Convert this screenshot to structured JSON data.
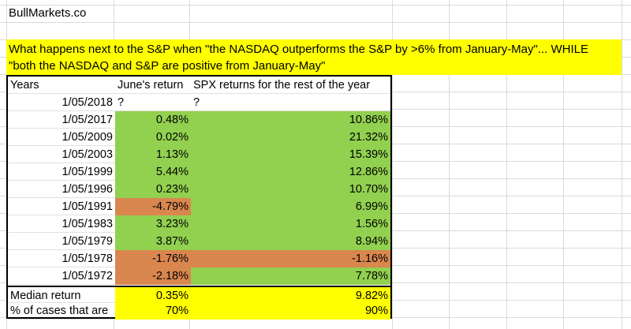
{
  "colors": {
    "positive": "#92D050",
    "negative": "#D9864F",
    "highlight": "#FFFF00"
  },
  "site": "BullMarkets.co",
  "title_line1": "What happens next to the S&P when \"the NASDAQ outperforms the S&P by >6% from January-May\"... WHILE",
  "title_line2": "\"both the NASDAQ and S&P are positive from January-May\"",
  "headers": [
    "Years",
    "June's return",
    "SPX returns for the rest of the year"
  ],
  "rows": [
    {
      "date": "1/05/2018",
      "june": "?",
      "rest": "?",
      "june_sign": "none",
      "rest_sign": "none"
    },
    {
      "date": "1/05/2017",
      "june": "0.48%",
      "rest": "10.86%",
      "june_sign": "pos",
      "rest_sign": "pos"
    },
    {
      "date": "1/05/2009",
      "june": "0.02%",
      "rest": "21.32%",
      "june_sign": "pos",
      "rest_sign": "pos"
    },
    {
      "date": "1/05/2003",
      "june": "1.13%",
      "rest": "15.39%",
      "june_sign": "pos",
      "rest_sign": "pos"
    },
    {
      "date": "1/05/1999",
      "june": "5.44%",
      "rest": "12.86%",
      "june_sign": "pos",
      "rest_sign": "pos"
    },
    {
      "date": "1/05/1996",
      "june": "0.23%",
      "rest": "10.70%",
      "june_sign": "pos",
      "rest_sign": "pos"
    },
    {
      "date": "1/05/1991",
      "june": "-4.79%",
      "rest": "6.99%",
      "june_sign": "neg",
      "rest_sign": "pos"
    },
    {
      "date": "1/05/1983",
      "june": "3.23%",
      "rest": "1.56%",
      "june_sign": "pos",
      "rest_sign": "pos"
    },
    {
      "date": "1/05/1979",
      "june": "3.87%",
      "rest": "8.94%",
      "june_sign": "pos",
      "rest_sign": "pos"
    },
    {
      "date": "1/05/1978",
      "june": "-1.76%",
      "rest": "-1.16%",
      "june_sign": "neg",
      "rest_sign": "neg"
    },
    {
      "date": "1/05/1972",
      "june": "-2.18%",
      "rest": "7.78%",
      "june_sign": "neg",
      "rest_sign": "pos"
    }
  ],
  "summary": [
    {
      "label": "Median return",
      "june": "0.35%",
      "rest": "9.82%"
    },
    {
      "label": "% of cases that are",
      "june": "70%",
      "rest": "90%"
    }
  ]
}
